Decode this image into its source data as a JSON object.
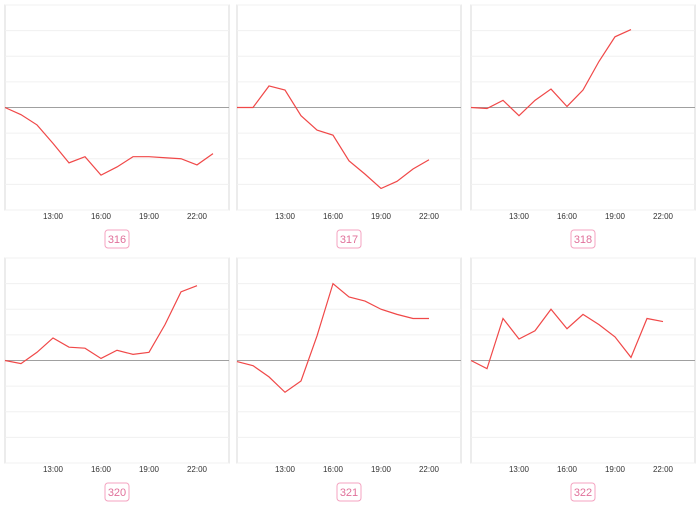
{
  "chart_data": [
    {
      "type": "line",
      "title": "316",
      "color": "#f04848",
      "grid": true,
      "xlim": [
        10,
        24
      ],
      "ylim": [
        -100,
        100
      ],
      "xticks": [
        {
          "value": 13,
          "label": "13:00"
        },
        {
          "value": 16,
          "label": "16:00"
        },
        {
          "value": 19,
          "label": "19:00"
        },
        {
          "value": 22,
          "label": "22:00"
        }
      ],
      "yticks": [
        -100,
        -75,
        -50,
        -25,
        0,
        25,
        50,
        75,
        100
      ],
      "x": [
        10,
        11,
        12,
        13,
        14,
        15,
        16,
        17,
        18,
        19,
        20,
        21,
        22,
        23
      ],
      "values": [
        0,
        -7,
        -17,
        -35,
        -54,
        -48,
        -66,
        -58,
        -48,
        -48,
        -49,
        -50,
        -56,
        -45
      ]
    },
    {
      "type": "line",
      "title": "317",
      "color": "#f04848",
      "grid": true,
      "xlim": [
        10,
        24
      ],
      "ylim": [
        -100,
        100
      ],
      "xticks": [
        {
          "value": 13,
          "label": "13:00"
        },
        {
          "value": 16,
          "label": "16:00"
        },
        {
          "value": 19,
          "label": "19:00"
        },
        {
          "value": 22,
          "label": "22:00"
        }
      ],
      "yticks": [
        -100,
        -75,
        -50,
        -25,
        0,
        25,
        50,
        75,
        100
      ],
      "x": [
        10,
        11,
        12,
        13,
        14,
        15,
        16,
        17,
        18,
        19,
        20,
        21,
        22
      ],
      "values": [
        0,
        0,
        21,
        17,
        -8,
        -22,
        -27,
        -52,
        -65,
        -79,
        -72,
        -60,
        -51
      ]
    },
    {
      "type": "line",
      "title": "318",
      "color": "#f04848",
      "grid": true,
      "xlim": [
        10,
        24
      ],
      "ylim": [
        -100,
        100
      ],
      "xticks": [
        {
          "value": 13,
          "label": "13:00"
        },
        {
          "value": 16,
          "label": "16:00"
        },
        {
          "value": 19,
          "label": "19:00"
        },
        {
          "value": 22,
          "label": "22:00"
        }
      ],
      "yticks": [
        -100,
        -75,
        -50,
        -25,
        0,
        25,
        50,
        75,
        100
      ],
      "x": [
        10,
        11,
        12,
        13,
        14,
        15,
        16,
        17,
        18,
        19,
        20
      ],
      "values": [
        0,
        -1,
        7,
        -8,
        7,
        18,
        1,
        17,
        45,
        69,
        76
      ]
    },
    {
      "type": "line",
      "title": "320",
      "color": "#f04848",
      "grid": true,
      "xlim": [
        10,
        24
      ],
      "ylim": [
        -100,
        100
      ],
      "xticks": [
        {
          "value": 13,
          "label": "13:00"
        },
        {
          "value": 16,
          "label": "16:00"
        },
        {
          "value": 19,
          "label": "19:00"
        },
        {
          "value": 22,
          "label": "22:00"
        }
      ],
      "yticks": [
        -100,
        -75,
        -50,
        -25,
        0,
        25,
        50,
        75,
        100
      ],
      "x": [
        10,
        11,
        12,
        13,
        14,
        15,
        16,
        17,
        18,
        19,
        20,
        21,
        22
      ],
      "values": [
        0,
        -3,
        8,
        22,
        13,
        12,
        2,
        10,
        6,
        8,
        35,
        67,
        73
      ]
    },
    {
      "type": "line",
      "title": "321",
      "color": "#f04848",
      "grid": true,
      "xlim": [
        10,
        24
      ],
      "ylim": [
        -100,
        100
      ],
      "xticks": [
        {
          "value": 13,
          "label": "13:00"
        },
        {
          "value": 16,
          "label": "16:00"
        },
        {
          "value": 19,
          "label": "19:00"
        },
        {
          "value": 22,
          "label": "22:00"
        }
      ],
      "yticks": [
        -100,
        -75,
        -50,
        -25,
        0,
        25,
        50,
        75,
        100
      ],
      "x": [
        10,
        11,
        12,
        13,
        14,
        15,
        16,
        17,
        18,
        19,
        20,
        21,
        22
      ],
      "values": [
        -1,
        -5,
        -16,
        -31,
        -20,
        24,
        75,
        62,
        58,
        50,
        45,
        41,
        41
      ]
    },
    {
      "type": "line",
      "title": "322",
      "color": "#f04848",
      "grid": true,
      "xlim": [
        10,
        24
      ],
      "ylim": [
        -100,
        100
      ],
      "xticks": [
        {
          "value": 13,
          "label": "13:00"
        },
        {
          "value": 16,
          "label": "16:00"
        },
        {
          "value": 19,
          "label": "19:00"
        },
        {
          "value": 22,
          "label": "22:00"
        }
      ],
      "yticks": [
        -100,
        -75,
        -50,
        -25,
        0,
        25,
        50,
        75,
        100
      ],
      "x": [
        10,
        11,
        12,
        13,
        14,
        15,
        16,
        17,
        18,
        19,
        20,
        21,
        22
      ],
      "values": [
        0,
        -8,
        41,
        21,
        29,
        50,
        31,
        45,
        35,
        23,
        3,
        41,
        38
      ]
    }
  ]
}
